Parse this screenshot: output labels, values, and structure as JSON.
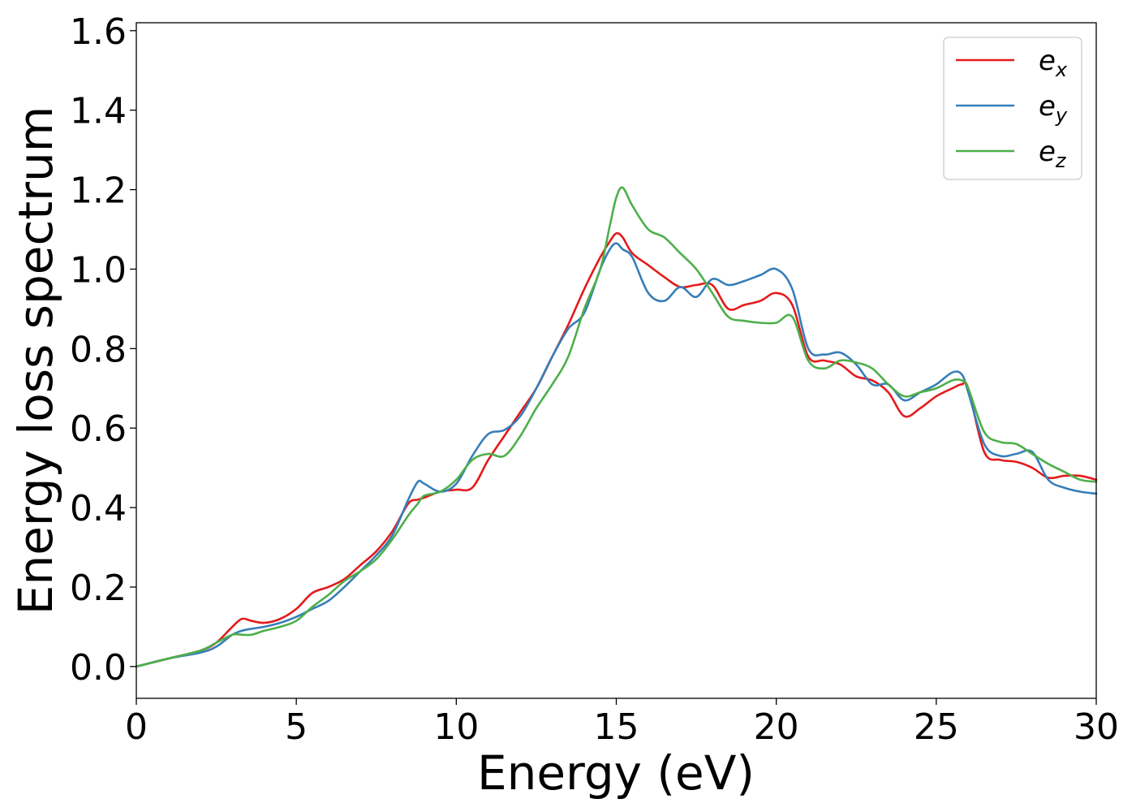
{
  "chart_data": {
    "type": "line",
    "title": "",
    "xlabel": "Energy (eV)",
    "ylabel": "Energy loss spectrum",
    "xlim": [
      0,
      30
    ],
    "ylim": [
      -0.08,
      1.62
    ],
    "xticks": [
      0,
      5,
      10,
      15,
      20,
      25,
      30
    ],
    "xtick_labels": [
      "0",
      "5",
      "10",
      "15",
      "20",
      "25",
      "30"
    ],
    "yticks": [
      0.0,
      0.2,
      0.4,
      0.6,
      0.8,
      1.0,
      1.2,
      1.4,
      1.6
    ],
    "ytick_labels": [
      "0.0",
      "0.2",
      "0.4",
      "0.6",
      "0.8",
      "1.0",
      "1.2",
      "1.4",
      "1.6"
    ],
    "grid": false,
    "legend_position": "top-right",
    "x": [
      0,
      1,
      2,
      2.5,
      3,
      3.3,
      3.6,
      4,
      4.5,
      5,
      5.5,
      6,
      6.5,
      7,
      7.5,
      8,
      8.5,
      8.8,
      9,
      9.5,
      10,
      10.5,
      11,
      11.5,
      12,
      12.5,
      13,
      13.5,
      14,
      14.5,
      14.8,
      15,
      15.2,
      15.5,
      16,
      16.5,
      17,
      17.5,
      18,
      18.5,
      19,
      19.5,
      20,
      20.5,
      21,
      21.5,
      22,
      22.5,
      23,
      23.5,
      24,
      24.5,
      25,
      25.5,
      25.8,
      26,
      26.5,
      27,
      27.5,
      28,
      28.5,
      29,
      29.5,
      30
    ],
    "series": [
      {
        "name": "e",
        "subscript": "x",
        "color": "#e41a1c",
        "values": [
          0.0,
          0.02,
          0.04,
          0.06,
          0.1,
          0.12,
          0.115,
          0.11,
          0.12,
          0.145,
          0.185,
          0.2,
          0.22,
          0.255,
          0.29,
          0.34,
          0.41,
          0.42,
          0.425,
          0.44,
          0.445,
          0.45,
          0.52,
          0.58,
          0.64,
          0.7,
          0.78,
          0.86,
          0.95,
          1.03,
          1.07,
          1.09,
          1.08,
          1.04,
          1.01,
          0.98,
          0.955,
          0.96,
          0.96,
          0.9,
          0.91,
          0.92,
          0.94,
          0.91,
          0.78,
          0.77,
          0.76,
          0.73,
          0.72,
          0.69,
          0.63,
          0.65,
          0.68,
          0.7,
          0.71,
          0.7,
          0.54,
          0.52,
          0.515,
          0.5,
          0.475,
          0.48,
          0.48,
          0.47
        ]
      },
      {
        "name": "e",
        "subscript": "y",
        "color": "#377eb8",
        "values": [
          0.0,
          0.02,
          0.035,
          0.05,
          0.08,
          0.09,
          0.095,
          0.1,
          0.11,
          0.125,
          0.145,
          0.165,
          0.2,
          0.24,
          0.28,
          0.33,
          0.42,
          0.465,
          0.46,
          0.44,
          0.46,
          0.53,
          0.585,
          0.595,
          0.63,
          0.7,
          0.78,
          0.85,
          0.89,
          1.0,
          1.05,
          1.065,
          1.05,
          1.03,
          0.94,
          0.92,
          0.955,
          0.93,
          0.975,
          0.96,
          0.97,
          0.985,
          1.0,
          0.95,
          0.8,
          0.785,
          0.79,
          0.76,
          0.71,
          0.71,
          0.67,
          0.69,
          0.71,
          0.74,
          0.735,
          0.69,
          0.56,
          0.53,
          0.535,
          0.54,
          0.47,
          0.45,
          0.44,
          0.435
        ]
      },
      {
        "name": "e",
        "subscript": "z",
        "color": "#4daf4a",
        "values": [
          0.0,
          0.02,
          0.04,
          0.06,
          0.08,
          0.08,
          0.08,
          0.09,
          0.1,
          0.115,
          0.15,
          0.18,
          0.215,
          0.24,
          0.27,
          0.32,
          0.38,
          0.41,
          0.43,
          0.44,
          0.47,
          0.52,
          0.535,
          0.53,
          0.58,
          0.65,
          0.71,
          0.78,
          0.9,
          1.0,
          1.11,
          1.18,
          1.205,
          1.16,
          1.1,
          1.08,
          1.04,
          1.0,
          0.94,
          0.88,
          0.87,
          0.865,
          0.865,
          0.88,
          0.77,
          0.75,
          0.77,
          0.765,
          0.75,
          0.71,
          0.68,
          0.69,
          0.7,
          0.72,
          0.72,
          0.7,
          0.59,
          0.565,
          0.56,
          0.535,
          0.51,
          0.49,
          0.47,
          0.465
        ]
      }
    ]
  }
}
